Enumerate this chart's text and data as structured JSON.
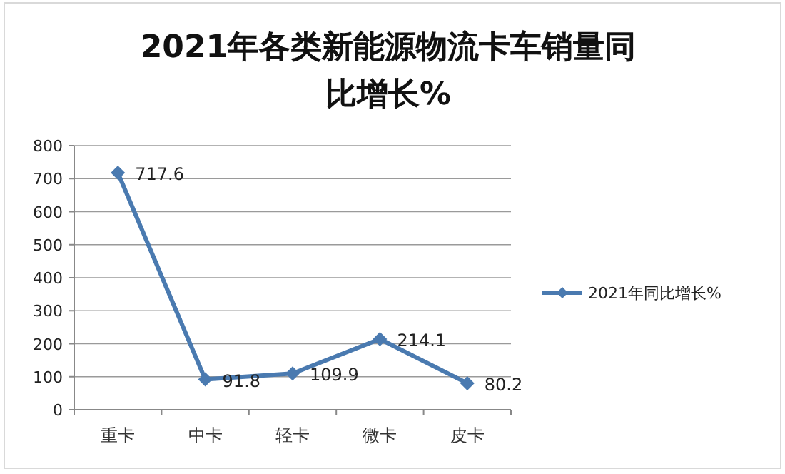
{
  "chart_data": {
    "type": "line",
    "title": "2021年各类新能源物流卡车销量同比增长%",
    "categories": [
      "重卡",
      "中卡",
      "轻卡",
      "微卡",
      "皮卡"
    ],
    "series": [
      {
        "name": "2021年同比增长%",
        "color": "#4a7ab0",
        "values": [
          717.6,
          91.8,
          109.9,
          214.1,
          80.2
        ]
      }
    ],
    "ylim": [
      0,
      800
    ],
    "yticks": [
      0,
      100,
      200,
      300,
      400,
      500,
      600,
      700,
      800
    ],
    "grid": "y",
    "legend": "right",
    "marker": "diamond",
    "line_style": "solid",
    "data_labels": true
  }
}
